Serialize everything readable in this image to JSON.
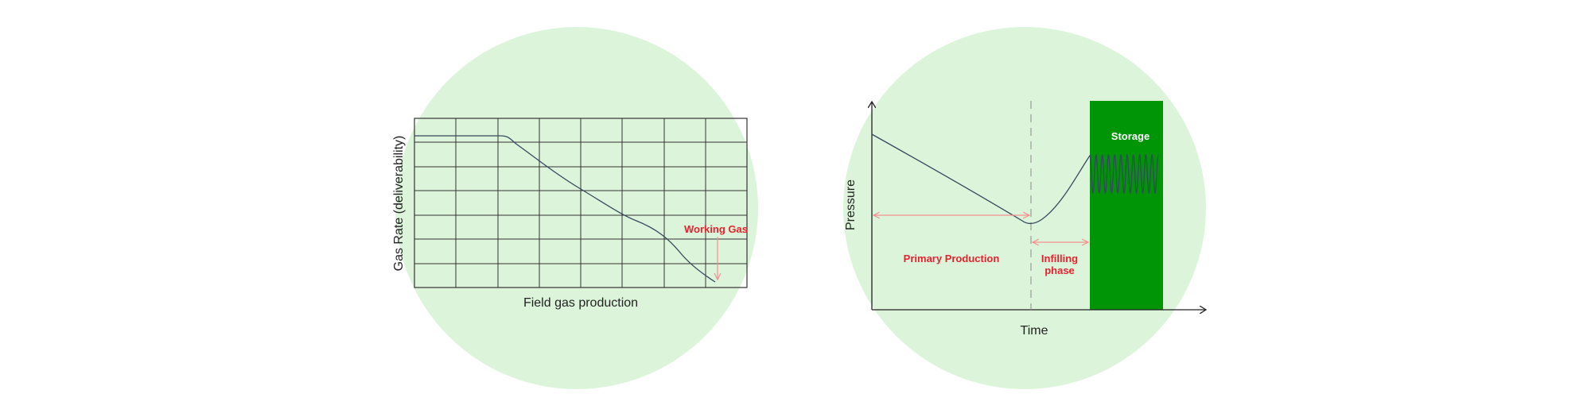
{
  "colors": {
    "circle_fill": "#dcf5da",
    "storage_fill": "#009407",
    "annotation_red": "#e8212e",
    "arrow_pink": "#f48f8f",
    "curve": "#34495e",
    "axis": "#222222",
    "grid": "#333333",
    "dashed": "#999999"
  },
  "left_panel": {
    "y_axis_label": "Gas Rate (deliverability)",
    "x_axis_label": "Field gas production",
    "working_gas_label": "Working Gas"
  },
  "right_panel": {
    "y_axis_label": "Pressure",
    "x_axis_label": "Time",
    "storage_label": "Storage",
    "primary_production_label": "Primary Production",
    "infilling_label_line1": "Infilling",
    "infilling_label_line2": "phase"
  }
}
